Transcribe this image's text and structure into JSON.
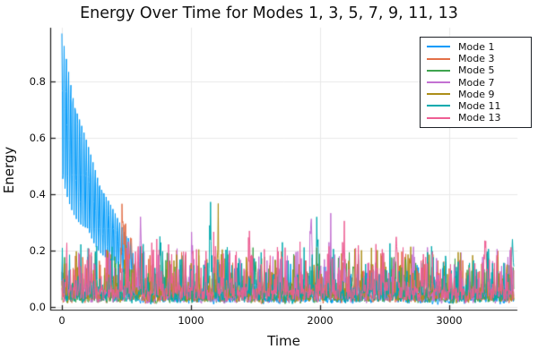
{
  "title": "Energy Over Time for Modes 1, 3, 5, 7, 9, 11, 13",
  "chart_data": {
    "type": "line",
    "title": "Energy Over Time for Modes 1, 3, 5, 7, 9, 11, 13",
    "xlabel": "Time",
    "ylabel": "Energy",
    "xlim": [
      -90,
      3530
    ],
    "ylim": [
      0,
      0.99
    ],
    "x_data_range": [
      0,
      3500
    ],
    "grid": true,
    "grid_color": "#E7E7E7",
    "axis_color": "#1A1A1A",
    "background_color": "#FFFFFF",
    "legend_position": "top-right",
    "xticks": {
      "values": [
        0,
        1000,
        2000,
        3000
      ],
      "labels": [
        "0",
        "1000",
        "2000",
        "3000"
      ]
    },
    "yticks": {
      "values": [
        0,
        0.2,
        0.4,
        0.6,
        0.8
      ],
      "labels": [
        "0.0",
        "0.2",
        "0.4",
        "0.6",
        "0.8"
      ]
    },
    "series": [
      {
        "name": "Mode 1",
        "color": "#009AFA",
        "seed": 101,
        "behavior": "damped beating oscillation decaying into low noise",
        "oscillation": {
          "initial_peak": 0.97,
          "decay_tau": 385,
          "period": 17.2,
          "trough_ratio": 0.43,
          "ends_at_t": 545
        },
        "envelope_samples": [
          [
            0,
            0.97
          ],
          [
            100,
            0.75
          ],
          [
            200,
            0.58
          ],
          [
            300,
            0.45
          ],
          [
            400,
            0.34
          ],
          [
            500,
            0.27
          ]
        ],
        "noise": {
          "base": 0.04,
          "spike_amp": 0.12,
          "spike_pow": 8
        },
        "notable_spikes": []
      },
      {
        "name": "Mode 3",
        "color": "#E36F47",
        "seed": 103,
        "behavior": "noise with broad bump near t=490",
        "bump": {
          "center": 495,
          "sigma": 42,
          "amp": 0.155
        },
        "noise": {
          "base": 0.05,
          "spike_amp": 0.16,
          "spike_pow": 8
        },
        "notable_spikes": [
          [
            470,
            0.21
          ],
          [
            535,
            0.2
          ]
        ]
      },
      {
        "name": "Mode 5",
        "color": "#3EA44E",
        "seed": 105,
        "behavior": "noise",
        "noise": {
          "base": 0.048,
          "spike_amp": 0.16,
          "spike_pow": 8
        },
        "notable_spikes": [
          [
            1500,
            0.17
          ],
          [
            2260,
            0.18
          ]
        ]
      },
      {
        "name": "Mode 7",
        "color": "#C371D2",
        "seed": 107,
        "behavior": "noise",
        "noise": {
          "base": 0.05,
          "spike_amp": 0.17,
          "spike_pow": 8
        },
        "notable_spikes": [
          [
            610,
            0.3
          ],
          [
            1010,
            0.2
          ],
          [
            1930,
            0.33
          ],
          [
            2080,
            0.18
          ]
        ]
      },
      {
        "name": "Mode 9",
        "color": "#AC8E18",
        "seed": 109,
        "behavior": "noise",
        "noise": {
          "base": 0.055,
          "spike_amp": 0.17,
          "spike_pow": 7
        },
        "notable_spikes": [
          [
            110,
            0.17
          ],
          [
            1210,
            0.23
          ],
          [
            2480,
            0.2
          ],
          [
            2700,
            0.17
          ]
        ]
      },
      {
        "name": "Mode 11",
        "color": "#00AAAE",
        "seed": 111,
        "behavior": "noise",
        "noise": {
          "base": 0.055,
          "spike_amp": 0.18,
          "spike_pow": 7
        },
        "notable_spikes": [
          [
            760,
            0.2
          ],
          [
            1150,
            0.245
          ],
          [
            1980,
            0.26
          ],
          [
            2870,
            0.2
          ],
          [
            3490,
            0.25
          ]
        ]
      },
      {
        "name": "Mode 13",
        "color": "#EE5E93",
        "seed": 113,
        "behavior": "noise (drawn on top)",
        "noise": {
          "base": 0.065,
          "spike_amp": 0.19,
          "spike_pow": 7
        },
        "notable_spikes": [
          [
            590,
            0.2
          ],
          [
            1190,
            0.21
          ],
          [
            1450,
            0.2
          ],
          [
            2180,
            0.21
          ],
          [
            2590,
            0.26
          ],
          [
            3280,
            0.26
          ]
        ]
      }
    ]
  }
}
